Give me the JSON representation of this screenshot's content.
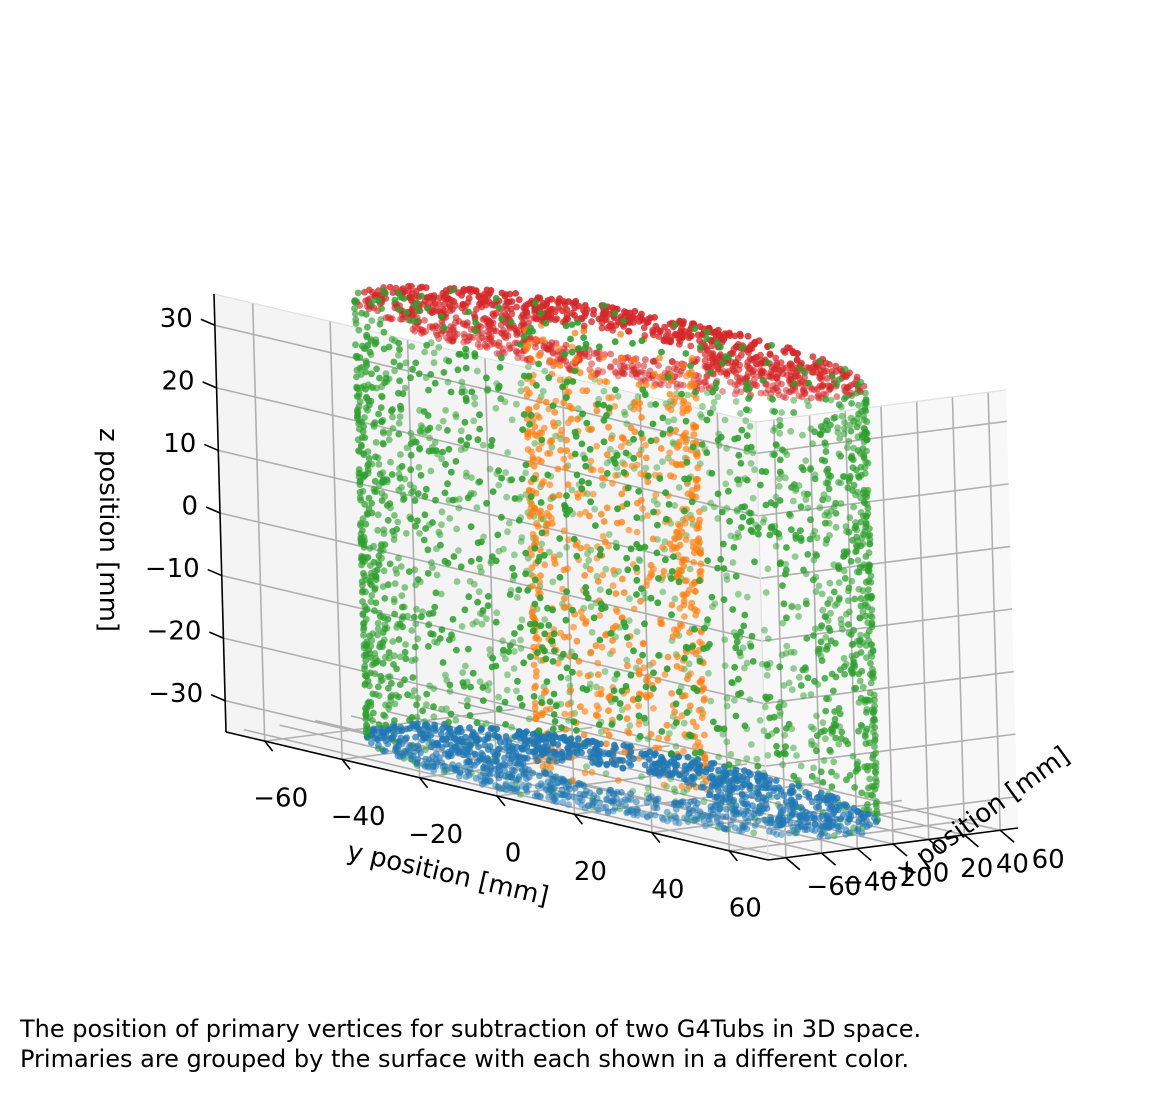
{
  "chart_data": {
    "type": "scatter3d",
    "xlabel": "x position [mm]",
    "ylabel": "y position [mm]",
    "zlabel": "z position [mm]",
    "xlim": [
      -70,
      70
    ],
    "ylim": [
      -70,
      70
    ],
    "zlim": [
      -35,
      35
    ],
    "xticks": [
      "−60",
      "−40",
      "−20",
      "0",
      "20",
      "40",
      "60"
    ],
    "yticks": [
      "−60",
      "−40",
      "−20",
      "0",
      "20",
      "40",
      "60"
    ],
    "zticks": [
      "−30",
      "−20",
      "−10",
      "0",
      "10",
      "20",
      "30"
    ],
    "grid": true,
    "geometry": {
      "outer_radius": 60,
      "inner_radius": 20,
      "half_height": 35
    },
    "series": [
      {
        "color": "#1f77b4",
        "surface": "bottom annulus",
        "z": -35
      },
      {
        "color": "#d62728",
        "surface": "top annulus",
        "z": 35
      },
      {
        "color": "#2ca02c",
        "surface": "outer cylinder wall",
        "radius": 60
      },
      {
        "color": "#ff7f0e",
        "surface": "inner cylinder wall",
        "radius": 20
      }
    ]
  },
  "caption": {
    "line1": "The position of primary vertices for subtraction of two G4Tubs in 3D space.",
    "line2": "Primaries are grouped by the surface with each shown in a different color."
  }
}
